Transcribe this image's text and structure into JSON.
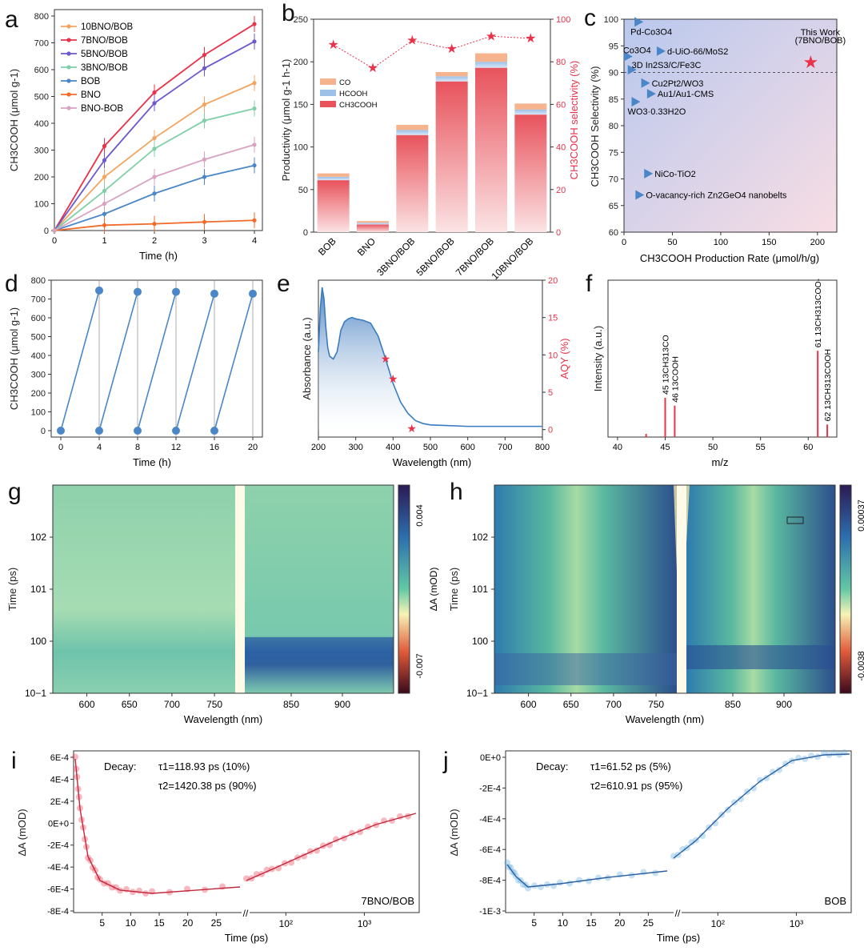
{
  "chart_data": [
    {
      "panel": "a",
      "type": "line",
      "ylabel": "CH3COOH (μmol g-1)",
      "xlabel": "Time (h)",
      "xlim": [
        0,
        4
      ],
      "ylim": [
        0,
        800
      ],
      "xticks": [
        "0",
        "1",
        "2",
        "3",
        "4"
      ],
      "yticks": [
        "0",
        "100",
        "200",
        "300",
        "400",
        "500",
        "600",
        "700",
        "800"
      ],
      "x": [
        0,
        1,
        2,
        3,
        4
      ],
      "series": [
        {
          "name": "10BNO/BOB",
          "color": "#f4a460",
          "values": [
            0,
            200,
            345,
            470,
            550
          ]
        },
        {
          "name": "7BNO/BOB",
          "color": "#e8334a",
          "values": [
            0,
            315,
            515,
            655,
            770
          ]
        },
        {
          "name": "5BNO/BOB",
          "color": "#6a5acd",
          "values": [
            0,
            262,
            475,
            605,
            705
          ]
        },
        {
          "name": "3BNO/BOB",
          "color": "#7fcfa8",
          "values": [
            0,
            148,
            305,
            410,
            455
          ]
        },
        {
          "name": "BOB",
          "color": "#4a86c8",
          "values": [
            0,
            62,
            138,
            200,
            243
          ]
        },
        {
          "name": "BNO",
          "color": "#f26b2a",
          "values": [
            0,
            20,
            25,
            32,
            38
          ]
        },
        {
          "name": "BNO-BOB",
          "color": "#d9a2c0",
          "values": [
            0,
            100,
            200,
            265,
            320
          ]
        }
      ]
    },
    {
      "panel": "b",
      "type": "bar",
      "ylabel": "Productivity (μmol g-1 h-1)",
      "y2label": "CH3COOH selectivity (%)",
      "ylim": [
        0,
        250
      ],
      "y2lim": [
        0,
        100
      ],
      "yticks": [
        "0",
        "50",
        "100",
        "150",
        "200",
        "250"
      ],
      "y2ticks": [
        "0",
        "20",
        "40",
        "60",
        "80",
        "100"
      ],
      "categories": [
        "BOB",
        "BNO",
        "3BNO/BOB",
        "5BNO/BOB",
        "7BNO/BOB",
        "10BNO/BOB"
      ],
      "series": [
        {
          "name": "CH3COOH",
          "values": [
            61,
            9,
            114,
            177,
            193,
            138
          ]
        },
        {
          "name": "HCOOH",
          "values": [
            4,
            2,
            6,
            6,
            7,
            6
          ]
        },
        {
          "name": "CO",
          "values": [
            4,
            2,
            6,
            5,
            10,
            7
          ]
        }
      ],
      "legend": [
        "CO",
        "HCOOH",
        "CH3COOH"
      ],
      "selectivity": [
        88,
        77,
        90,
        86,
        92,
        91
      ]
    },
    {
      "panel": "c",
      "type": "scatter",
      "ylabel": "CH3COOH Selectivity (%)",
      "xlabel": "CH3COOH Production Rate (μmol/h/g)",
      "xlim": [
        0,
        220
      ],
      "ylim": [
        60,
        100
      ],
      "xticks": [
        "0",
        "50",
        "100",
        "150",
        "200"
      ],
      "yticks": [
        "60",
        "65",
        "70",
        "75",
        "80",
        "85",
        "90",
        "95",
        "100"
      ],
      "points": [
        {
          "label": "Pd-Co3O4",
          "x": 15,
          "y": 99.5
        },
        {
          "label": "Co3O4",
          "x": 4,
          "y": 93
        },
        {
          "label": "d-UiO-66/MoS2",
          "x": 38,
          "y": 94
        },
        {
          "label": "3D In2S3/C/Fe3C",
          "x": 8,
          "y": 90.5
        },
        {
          "label": "Cu2Pt2/WO3",
          "x": 22,
          "y": 88
        },
        {
          "label": "Au1/Au1-CMS",
          "x": 28,
          "y": 86
        },
        {
          "label": "WO3·0.33H2O",
          "x": 12,
          "y": 84.5
        },
        {
          "label": "NiCo-TiO2",
          "x": 25,
          "y": 71
        },
        {
          "label": "O-vacancy-rich Zn2GeO4 nanobelts",
          "x": 16,
          "y": 67
        }
      ],
      "highlight": {
        "label1": "This Work",
        "label2": "(7BNO/BOB)",
        "x": 193,
        "y": 92
      },
      "reference_y": 90
    },
    {
      "panel": "d",
      "type": "line",
      "ylabel": "CH3COOH (μmol g-1)",
      "xlabel": "Time (h)",
      "xlim": [
        -1,
        21
      ],
      "ylim": [
        0,
        800
      ],
      "xticks": [
        "0",
        "4",
        "8",
        "12",
        "16",
        "20"
      ],
      "yticks": [
        "0",
        "100",
        "200",
        "300",
        "400",
        "500",
        "600",
        "700",
        "800"
      ],
      "cycles": [
        {
          "x": [
            0,
            4
          ],
          "values": [
            0,
            745
          ]
        },
        {
          "x": [
            4,
            8
          ],
          "values": [
            0,
            738
          ]
        },
        {
          "x": [
            8,
            12
          ],
          "values": [
            0,
            738
          ]
        },
        {
          "x": [
            12,
            16
          ],
          "values": [
            0,
            728
          ]
        },
        {
          "x": [
            16,
            20
          ],
          "values": [
            0,
            728
          ]
        }
      ]
    },
    {
      "panel": "e",
      "type": "line",
      "ylabel": "Absorbance (a.u.)",
      "y2label": "AQY (%)",
      "xlabel": "Wavelength (nm)",
      "xlim": [
        200,
        800
      ],
      "y2lim": [
        -1,
        20
      ],
      "xticks": [
        "200",
        "300",
        "400",
        "500",
        "600",
        "700",
        "800"
      ],
      "y2ticks": [
        "0",
        "5",
        "10",
        "15",
        "20"
      ],
      "absorbance": {
        "x": [
          200,
          205,
          210,
          215,
          220,
          225,
          230,
          240,
          250,
          255,
          260,
          270,
          280,
          290,
          300,
          320,
          340,
          360,
          380,
          400,
          420,
          440,
          460,
          480,
          500,
          550,
          600,
          700,
          800
        ],
        "values": [
          0.55,
          0.85,
          1.0,
          0.92,
          0.72,
          0.58,
          0.52,
          0.5,
          0.55,
          0.62,
          0.7,
          0.76,
          0.78,
          0.79,
          0.78,
          0.77,
          0.75,
          0.66,
          0.5,
          0.33,
          0.2,
          0.12,
          0.07,
          0.05,
          0.04,
          0.035,
          0.03,
          0.03,
          0.03
        ]
      },
      "aqy": {
        "x": [
          380,
          400,
          450
        ],
        "values": [
          9.5,
          6.8,
          0.2
        ]
      }
    },
    {
      "panel": "f",
      "type": "bar",
      "ylabel": "Intensity (a.u.)",
      "xlabel": "m/z",
      "xlim": [
        39,
        63
      ],
      "xticks": [
        "40",
        "45",
        "50",
        "55",
        "60"
      ],
      "peaks": [
        {
          "mz": 43,
          "h": 0.02
        },
        {
          "mz": 45,
          "h": 0.25,
          "label": "45 13CH313CO"
        },
        {
          "mz": 46,
          "h": 0.2,
          "label": "46 13COOH"
        },
        {
          "mz": 61,
          "h": 0.55,
          "label": "61 13CH313COO-"
        },
        {
          "mz": 62,
          "h": 0.08,
          "label": "62 13CH313COOH"
        }
      ]
    },
    {
      "panel": "g",
      "type": "heatmap",
      "ylabel": "Time (ps)",
      "xlabel": "Wavelength (nm)",
      "xticks": [
        "600",
        "650",
        "700",
        "750",
        "850",
        "900"
      ],
      "yticks": [
        "10−1",
        "100",
        "101",
        "102"
      ],
      "colorbar_label": "ΔA (mOD)",
      "colorbar_ticks": [
        "0.004",
        "-0.007"
      ]
    },
    {
      "panel": "h",
      "type": "heatmap",
      "ylabel": "Time (ps)",
      "xlabel": "Wavelength (nm)",
      "xticks": [
        "600",
        "650",
        "700",
        "750",
        "850",
        "900"
      ],
      "yticks": [
        "10−1",
        "100",
        "101",
        "102"
      ],
      "colorbar_label": "ΔA (mOD)",
      "colorbar_ticks": [
        "0.00037",
        "-0.0038"
      ]
    },
    {
      "panel": "i",
      "type": "scatter",
      "ylabel": "ΔA (mOD)",
      "xlabel": "Time (ps)",
      "yticks": [
        "6E-4",
        "4E-4",
        "2E-4",
        "0E+0",
        "-2E-4",
        "-4E-4",
        "-6E-4",
        "-8E-4"
      ],
      "xticks_lin": [
        "5",
        "10",
        "15",
        "20",
        "25"
      ],
      "xticks_log": [
        "10²",
        "10³"
      ],
      "fit_text1": "Decay:",
      "fit_text2": "τ1=118.93 ps (10%)",
      "fit_text3": "τ2=1420.38 ps (90%)",
      "sample": "7BNO/BOB",
      "color": "#e8334a"
    },
    {
      "panel": "j",
      "type": "scatter",
      "ylabel": "ΔA (mOD)",
      "xlabel": "Time (ps)",
      "yticks": [
        "0E+0",
        "-2E-4",
        "-4E-4",
        "-6E-4",
        "-8E-4",
        "-1E-3"
      ],
      "xticks_lin": [
        "5",
        "10",
        "15",
        "20",
        "25"
      ],
      "xticks_log": [
        "10²",
        "10³"
      ],
      "fit_text1": "Decay:",
      "fit_text2": "τ1=61.52 ps (5%)",
      "fit_text3": "τ2=610.91 ps (95%)",
      "sample": "BOB",
      "color": "#5aa8dc"
    }
  ]
}
